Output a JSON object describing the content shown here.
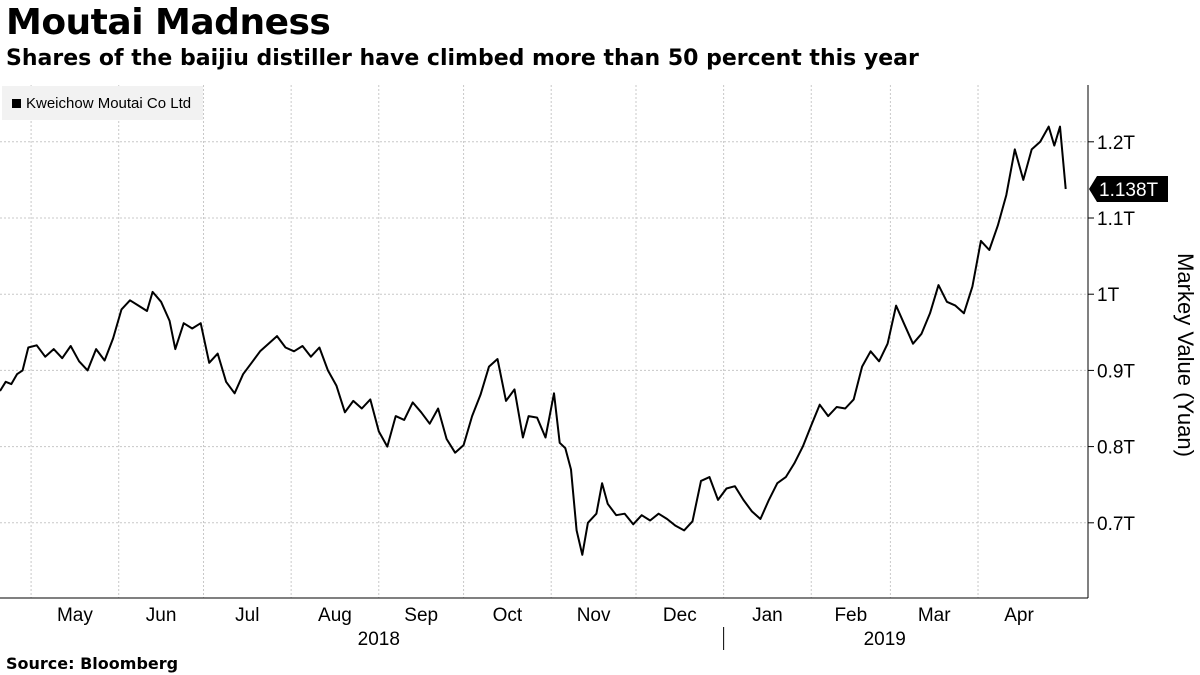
{
  "header": {
    "title": "Moutai Madness",
    "subtitle": "Shares of the baijiu distiller have climbed more than 50 percent this year"
  },
  "footer": {
    "source": "Source: Bloomberg"
  },
  "chart_data": {
    "type": "line",
    "title": "Moutai Madness",
    "subtitle": "Shares of the baijiu distiller have climbed more than 50 percent this year",
    "ylabel": "Markey Value (Yuan)",
    "y_unit_suffix": "T",
    "ylim": [
      0.6,
      1.28
    ],
    "yticks": [
      0.7,
      0.8,
      0.9,
      1.0,
      1.1,
      1.2
    ],
    "ytick_labels": [
      "0.7T",
      "0.8T",
      "0.9T",
      "1T",
      "1.1T",
      "1.2T"
    ],
    "xlim": [
      "2018-04-20",
      "2019-04-30"
    ],
    "month_ticks": [
      {
        "label": "May",
        "date": "2018-05-01"
      },
      {
        "label": "Jun",
        "date": "2018-06-01"
      },
      {
        "label": "Jul",
        "date": "2018-07-01"
      },
      {
        "label": "Aug",
        "date": "2018-08-01"
      },
      {
        "label": "Sep",
        "date": "2018-09-01"
      },
      {
        "label": "Oct",
        "date": "2018-10-01"
      },
      {
        "label": "Nov",
        "date": "2018-11-01"
      },
      {
        "label": "Dec",
        "date": "2018-12-01"
      },
      {
        "label": "Jan",
        "date": "2019-01-01"
      },
      {
        "label": "Feb",
        "date": "2019-02-01"
      },
      {
        "label": "Mar",
        "date": "2019-03-01"
      },
      {
        "label": "Apr",
        "date": "2019-04-01"
      }
    ],
    "year_labels": [
      {
        "label": "2018",
        "date": "2018-09-01"
      },
      {
        "label": "2019",
        "date": "2019-02-27"
      }
    ],
    "year_divider_date": "2019-01-01",
    "grid": true,
    "legend_position": "top-left",
    "last_value_label": "1.138T",
    "colors": {
      "line": "#000000",
      "grid": "#c8c8c8",
      "callout_bg": "#000000",
      "legend_bg": "#f2f2f2"
    },
    "series": [
      {
        "name": "Kweichow Moutai Co Ltd",
        "points": [
          [
            "2018-04-20",
            0.873
          ],
          [
            "2018-04-22",
            0.885
          ],
          [
            "2018-04-24",
            0.882
          ],
          [
            "2018-04-26",
            0.895
          ],
          [
            "2018-04-28",
            0.9
          ],
          [
            "2018-04-30",
            0.93
          ],
          [
            "2018-05-03",
            0.933
          ],
          [
            "2018-05-06",
            0.918
          ],
          [
            "2018-05-09",
            0.928
          ],
          [
            "2018-05-12",
            0.916
          ],
          [
            "2018-05-15",
            0.932
          ],
          [
            "2018-05-18",
            0.912
          ],
          [
            "2018-05-21",
            0.9
          ],
          [
            "2018-05-24",
            0.928
          ],
          [
            "2018-05-27",
            0.913
          ],
          [
            "2018-05-30",
            0.942
          ],
          [
            "2018-06-02",
            0.98
          ],
          [
            "2018-06-05",
            0.992
          ],
          [
            "2018-06-08",
            0.985
          ],
          [
            "2018-06-11",
            0.978
          ],
          [
            "2018-06-13",
            1.003
          ],
          [
            "2018-06-16",
            0.99
          ],
          [
            "2018-06-19",
            0.965
          ],
          [
            "2018-06-21",
            0.928
          ],
          [
            "2018-06-24",
            0.962
          ],
          [
            "2018-06-27",
            0.955
          ],
          [
            "2018-06-30",
            0.962
          ],
          [
            "2018-07-03",
            0.91
          ],
          [
            "2018-07-06",
            0.922
          ],
          [
            "2018-07-09",
            0.885
          ],
          [
            "2018-07-12",
            0.87
          ],
          [
            "2018-07-15",
            0.895
          ],
          [
            "2018-07-18",
            0.91
          ],
          [
            "2018-07-21",
            0.925
          ],
          [
            "2018-07-24",
            0.935
          ],
          [
            "2018-07-27",
            0.945
          ],
          [
            "2018-07-30",
            0.93
          ],
          [
            "2018-08-02",
            0.925
          ],
          [
            "2018-08-05",
            0.932
          ],
          [
            "2018-08-08",
            0.918
          ],
          [
            "2018-08-11",
            0.93
          ],
          [
            "2018-08-14",
            0.9
          ],
          [
            "2018-08-17",
            0.88
          ],
          [
            "2018-08-20",
            0.845
          ],
          [
            "2018-08-23",
            0.86
          ],
          [
            "2018-08-26",
            0.85
          ],
          [
            "2018-08-29",
            0.862
          ],
          [
            "2018-09-01",
            0.82
          ],
          [
            "2018-09-04",
            0.8
          ],
          [
            "2018-09-07",
            0.84
          ],
          [
            "2018-09-10",
            0.835
          ],
          [
            "2018-09-13",
            0.858
          ],
          [
            "2018-09-16",
            0.845
          ],
          [
            "2018-09-19",
            0.83
          ],
          [
            "2018-09-22",
            0.85
          ],
          [
            "2018-09-25",
            0.81
          ],
          [
            "2018-09-28",
            0.792
          ],
          [
            "2018-10-01",
            0.802
          ],
          [
            "2018-10-04",
            0.84
          ],
          [
            "2018-10-07",
            0.868
          ],
          [
            "2018-10-10",
            0.905
          ],
          [
            "2018-10-13",
            0.915
          ],
          [
            "2018-10-16",
            0.86
          ],
          [
            "2018-10-19",
            0.875
          ],
          [
            "2018-10-22",
            0.812
          ],
          [
            "2018-10-24",
            0.84
          ],
          [
            "2018-10-27",
            0.838
          ],
          [
            "2018-10-30",
            0.812
          ],
          [
            "2018-11-02",
            0.87
          ],
          [
            "2018-11-04",
            0.805
          ],
          [
            "2018-11-06",
            0.798
          ],
          [
            "2018-11-08",
            0.77
          ],
          [
            "2018-11-10",
            0.69
          ],
          [
            "2018-11-12",
            0.658
          ],
          [
            "2018-11-14",
            0.7
          ],
          [
            "2018-11-17",
            0.712
          ],
          [
            "2018-11-19",
            0.752
          ],
          [
            "2018-11-21",
            0.725
          ],
          [
            "2018-11-24",
            0.71
          ],
          [
            "2018-11-27",
            0.712
          ],
          [
            "2018-11-30",
            0.698
          ],
          [
            "2018-12-03",
            0.71
          ],
          [
            "2018-12-06",
            0.703
          ],
          [
            "2018-12-09",
            0.712
          ],
          [
            "2018-12-12",
            0.705
          ],
          [
            "2018-12-15",
            0.696
          ],
          [
            "2018-12-18",
            0.69
          ],
          [
            "2018-12-21",
            0.702
          ],
          [
            "2018-12-24",
            0.755
          ],
          [
            "2018-12-27",
            0.76
          ],
          [
            "2018-12-30",
            0.73
          ],
          [
            "2019-01-02",
            0.745
          ],
          [
            "2019-01-05",
            0.748
          ],
          [
            "2019-01-08",
            0.73
          ],
          [
            "2019-01-11",
            0.715
          ],
          [
            "2019-01-14",
            0.705
          ],
          [
            "2019-01-17",
            0.73
          ],
          [
            "2019-01-20",
            0.752
          ],
          [
            "2019-01-23",
            0.76
          ],
          [
            "2019-01-26",
            0.778
          ],
          [
            "2019-01-29",
            0.8
          ],
          [
            "2019-02-01",
            0.828
          ],
          [
            "2019-02-04",
            0.855
          ],
          [
            "2019-02-07",
            0.84
          ],
          [
            "2019-02-10",
            0.852
          ],
          [
            "2019-02-13",
            0.85
          ],
          [
            "2019-02-16",
            0.862
          ],
          [
            "2019-02-19",
            0.905
          ],
          [
            "2019-02-22",
            0.925
          ],
          [
            "2019-02-25",
            0.912
          ],
          [
            "2019-02-28",
            0.935
          ],
          [
            "2019-03-03",
            0.985
          ],
          [
            "2019-03-06",
            0.96
          ],
          [
            "2019-03-09",
            0.935
          ],
          [
            "2019-03-12",
            0.948
          ],
          [
            "2019-03-15",
            0.975
          ],
          [
            "2019-03-18",
            1.012
          ],
          [
            "2019-03-21",
            0.99
          ],
          [
            "2019-03-24",
            0.985
          ],
          [
            "2019-03-27",
            0.975
          ],
          [
            "2019-03-30",
            1.01
          ],
          [
            "2019-04-02",
            1.07
          ],
          [
            "2019-04-05",
            1.058
          ],
          [
            "2019-04-08",
            1.09
          ],
          [
            "2019-04-11",
            1.13
          ],
          [
            "2019-04-14",
            1.19
          ],
          [
            "2019-04-17",
            1.15
          ],
          [
            "2019-04-20",
            1.19
          ],
          [
            "2019-04-23",
            1.2
          ],
          [
            "2019-04-26",
            1.22
          ],
          [
            "2019-04-28",
            1.195
          ],
          [
            "2019-04-30",
            1.22
          ],
          [
            "2019-05-02",
            1.138
          ]
        ]
      }
    ]
  }
}
